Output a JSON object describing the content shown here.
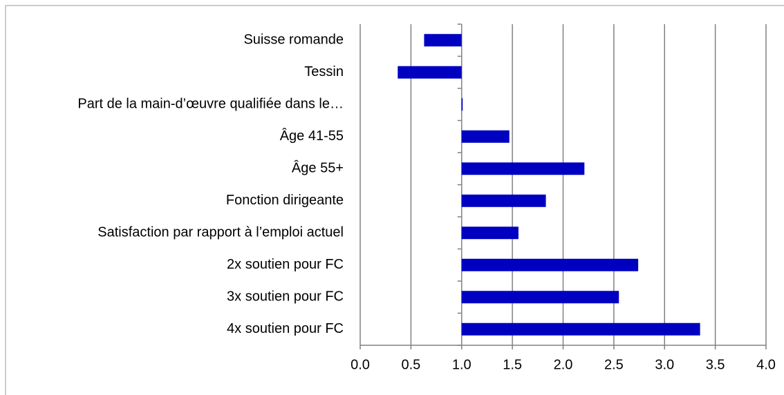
{
  "chart_data": {
    "type": "barh",
    "categories": [
      "Suisse romande",
      "Tessin",
      "Part de la main-d’œuvre qualifiée dans le…",
      "Âge 41-55",
      "Âge 55+",
      "Fonction dirigeante",
      "Satisfaction par rapport à l’emploi actuel",
      "2x soutien pour FC",
      "3x soutien pour FC",
      "4x soutien pour FC"
    ],
    "values": [
      0.63,
      0.37,
      1.01,
      1.47,
      2.21,
      1.83,
      1.56,
      2.74,
      2.55,
      3.35
    ],
    "color": "#0000c0",
    "axis_crossing": 1,
    "xlim": [
      0,
      4
    ],
    "xticks": [
      {
        "value": 0,
        "label": "0.0"
      },
      0.5,
      {
        "value": 1,
        "label": "1.0"
      },
      1.5,
      {
        "value": 2,
        "label": "2.0"
      },
      2.5,
      {
        "value": 3,
        "label": "3.0"
      },
      3.5,
      {
        "value": 4,
        "label": "4.0"
      }
    ],
    "grid": true
  }
}
